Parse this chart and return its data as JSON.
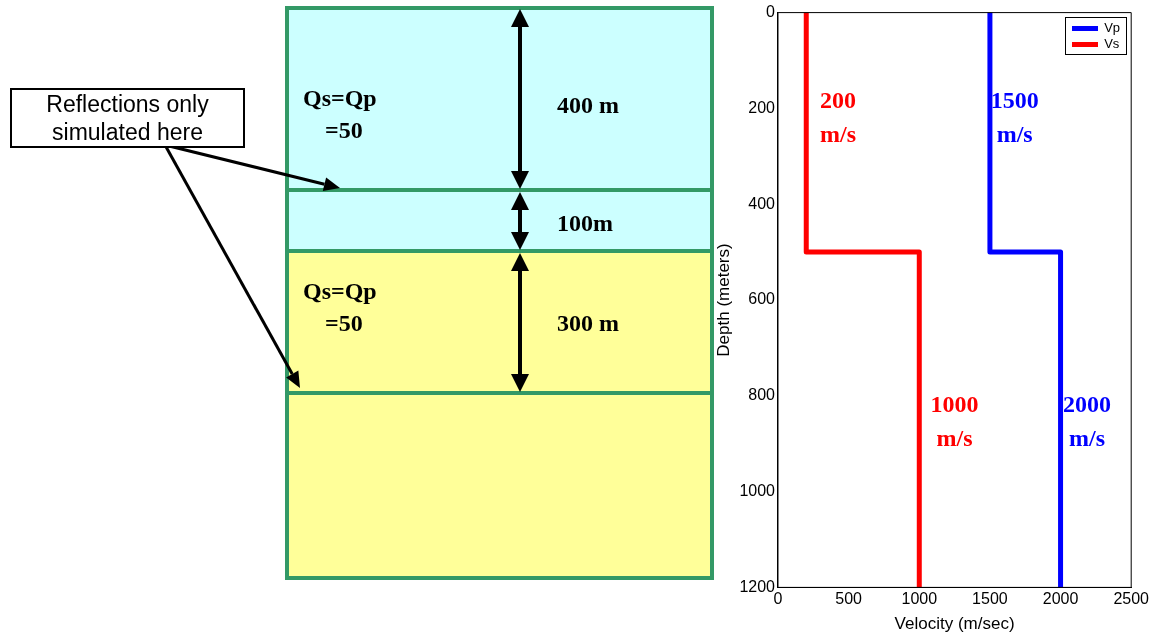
{
  "chart_data": [
    {
      "type": "other",
      "annotations": [
        "Reflections only simulated here",
        "Qs=Qp =50",
        "400 m",
        "100m",
        "Qs=Qp =50",
        "300 m"
      ]
    },
    {
      "type": "line",
      "xlabel": "Velocity (m/sec)",
      "ylabel": "Depth (meters)",
      "xlim": [
        0,
        2500
      ],
      "xticks": [
        0,
        500,
        1000,
        1500,
        2000,
        2500
      ],
      "ylim": [
        1200,
        0
      ],
      "yticks": [
        0,
        200,
        400,
        600,
        800,
        1000,
        1200
      ],
      "legend": "top right",
      "grid": false,
      "marker": "none",
      "line_style": "solid",
      "series": [
        {
          "name": "Vp",
          "color": "#0000ff",
          "x": [
            1500,
            1500,
            2000,
            2000
          ],
          "values": [
            0,
            500,
            500,
            1200
          ]
        },
        {
          "name": "Vs",
          "color": "#ff0000",
          "x": [
            200,
            200,
            1000,
            1000
          ],
          "values": [
            0,
            500,
            500,
            1200
          ]
        }
      ],
      "annotations": [
        "200 m/s",
        "1500 m/s",
        "1000 m/s",
        "2000 m/s"
      ]
    }
  ]
}
